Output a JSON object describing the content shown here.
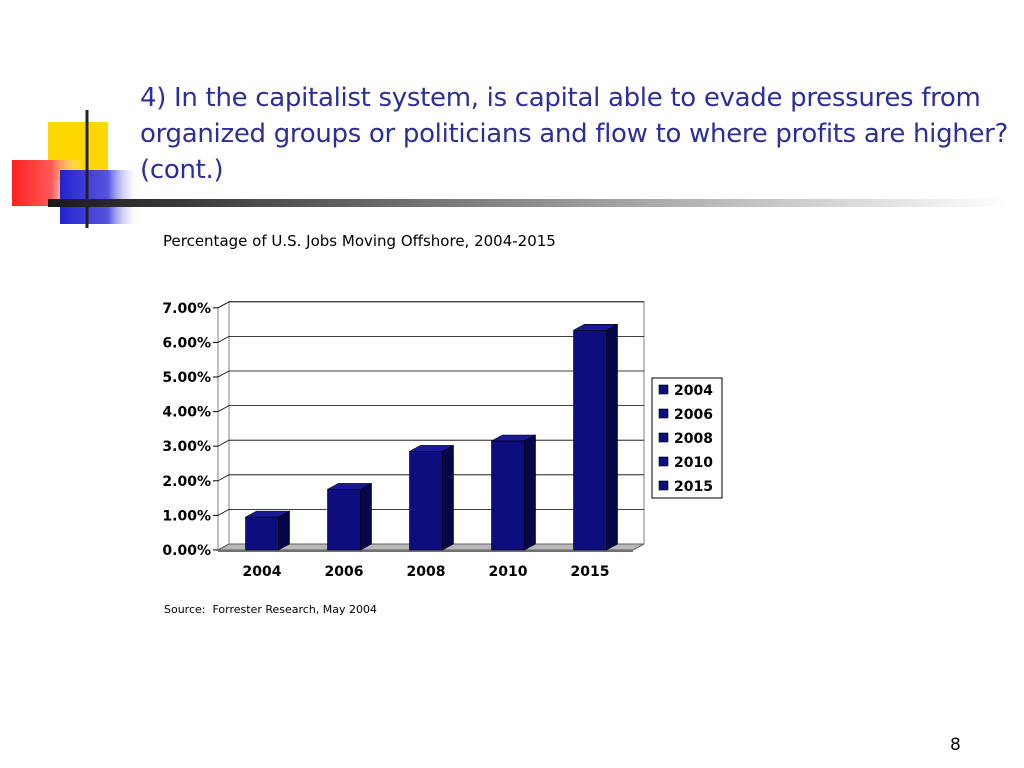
{
  "slide": {
    "title": "4) In the capitalist system, is capital able to evade pressures from organized groups or politicians and flow to where profits are higher? (cont.)",
    "source": "Source:  Forrester Research, May 2004",
    "page_number": "8"
  },
  "colors": {
    "title": "#2e2e99",
    "bar": "#0d0d80",
    "bar_side": "#06064a",
    "logo_yellow": "#ffd700",
    "logo_red": "#ff2020",
    "logo_blue": "#2323d0"
  },
  "chart_data": {
    "type": "bar",
    "title": "Percentage of U.S. Jobs Moving Offshore, 2004-2015",
    "categories": [
      "2004",
      "2006",
      "2008",
      "2010",
      "2015"
    ],
    "values": [
      0.95,
      1.75,
      2.85,
      3.15,
      6.35
    ],
    "y_tick_labels": [
      "0.00%",
      "1.00%",
      "2.00%",
      "3.00%",
      "4.00%",
      "5.00%",
      "6.00%",
      "7.00%"
    ],
    "ylim": [
      0,
      7
    ],
    "unit": "%",
    "legend": [
      "2004",
      "2006",
      "2008",
      "2010",
      "2015"
    ],
    "legend_position": "right",
    "grid": true,
    "style": "3d"
  }
}
